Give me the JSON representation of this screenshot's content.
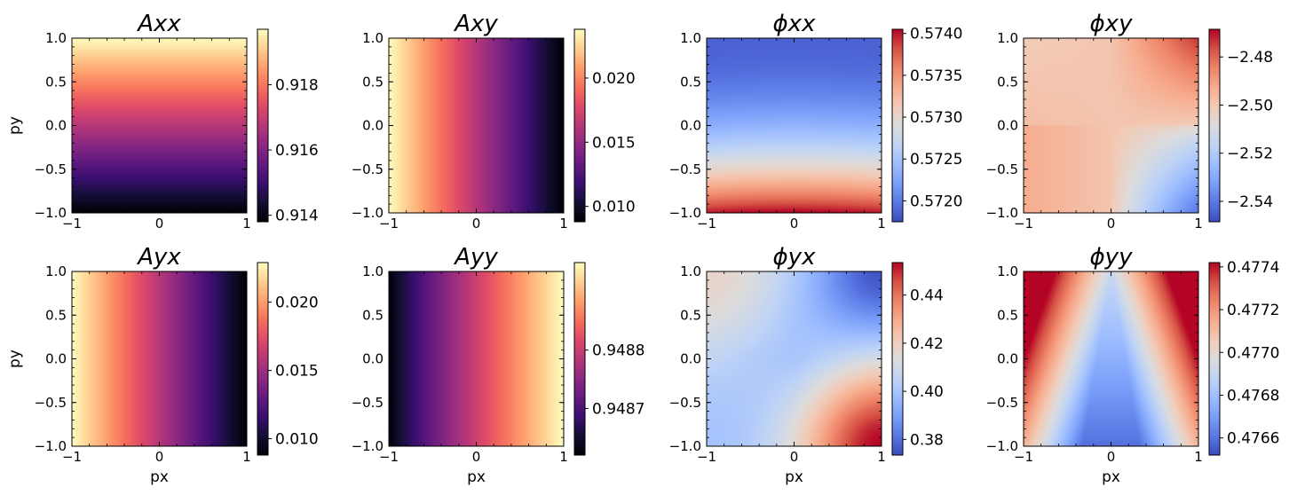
{
  "figure": {
    "colormaps": {
      "magma": [
        "#000004",
        "#140e36",
        "#3b0f70",
        "#641a80",
        "#8c2981",
        "#b73779",
        "#de4968",
        "#f7705c",
        "#fe9f6d",
        "#fecf92",
        "#fcfdbf"
      ],
      "coolwarm": [
        "#3b4cc0",
        "#5a78e4",
        "#7b9ff9",
        "#9ebeff",
        "#c0d4f5",
        "#dddcdc",
        "#f2cbb7",
        "#f7ac8e",
        "#ee8468",
        "#d65244",
        "#b40426"
      ]
    },
    "x_ticks": [
      -1,
      0,
      1
    ],
    "x_tick_labels": [
      "−1",
      "0",
      "1"
    ],
    "y_ticks": [
      1.0,
      0.5,
      0.0,
      -0.5,
      -1.0
    ],
    "y_tick_labels": [
      "1.0",
      "0.5",
      "0.0",
      "−0.5",
      "−1.0"
    ]
  },
  "chart_data": [
    {
      "type": "heatmap",
      "title": "Axx",
      "xlabel": "",
      "ylabel": "py",
      "xlim": [
        -1,
        1
      ],
      "ylim": [
        -1,
        1
      ],
      "colormap": "magma",
      "pattern": "vertical",
      "vmin": 0.9138,
      "vmax": 0.9197,
      "colorbar_ticks": [
        0.914,
        0.916,
        0.918
      ],
      "colorbar_tick_labels": [
        "0.914",
        "0.916",
        "0.918"
      ]
    },
    {
      "type": "heatmap",
      "title": "Axy",
      "xlabel": "",
      "ylabel": "",
      "xlim": [
        -1,
        1
      ],
      "ylim": [
        -1,
        1
      ],
      "colormap": "magma",
      "pattern": "horizontal-decreasing",
      "vmin": 0.0088,
      "vmax": 0.0238,
      "colorbar_ticks": [
        0.01,
        0.015,
        0.02
      ],
      "colorbar_tick_labels": [
        "0.010",
        "0.015",
        "0.020"
      ]
    },
    {
      "type": "heatmap",
      "title": "ϕxx",
      "xlabel": "",
      "ylabel": "",
      "xlim": [
        -1,
        1
      ],
      "ylim": [
        -1,
        1
      ],
      "colormap": "coolwarm",
      "pattern": "vertical-inverted",
      "vmin": 0.57175,
      "vmax": 0.57405,
      "colorbar_ticks": [
        0.572,
        0.5725,
        0.573,
        0.5735,
        0.574
      ],
      "colorbar_tick_labels": [
        "0.5720",
        "0.5725",
        "0.5730",
        "0.5735",
        "0.5740"
      ]
    },
    {
      "type": "heatmap",
      "title": "ϕxy",
      "xlabel": "",
      "ylabel": "",
      "xlim": [
        -1,
        1
      ],
      "ylim": [
        -1,
        1
      ],
      "colormap": "coolwarm",
      "pattern": "diagonal-xy",
      "vmin": -2.5485,
      "vmax": -2.4685,
      "colorbar_ticks": [
        -2.54,
        -2.52,
        -2.5,
        -2.48
      ],
      "colorbar_tick_labels": [
        "−2.54",
        "−2.52",
        "−2.50",
        "−2.48"
      ]
    },
    {
      "type": "heatmap",
      "title": "Ayx",
      "xlabel": "px",
      "ylabel": "py",
      "xlim": [
        -1,
        1
      ],
      "ylim": [
        -1,
        1
      ],
      "colormap": "magma",
      "pattern": "horizontal-decreasing",
      "vmin": 0.0088,
      "vmax": 0.0229,
      "colorbar_ticks": [
        0.01,
        0.015,
        0.02
      ],
      "colorbar_tick_labels": [
        "0.010",
        "0.015",
        "0.020"
      ]
    },
    {
      "type": "heatmap",
      "title": "Ayy",
      "xlabel": "px",
      "ylabel": "",
      "xlim": [
        -1,
        1
      ],
      "ylim": [
        -1,
        1
      ],
      "colormap": "magma",
      "pattern": "horizontal-increasing",
      "vmin": 0.94862,
      "vmax": 0.94895,
      "colorbar_ticks": [
        0.9487,
        0.9488
      ],
      "colorbar_tick_labels": [
        "0.9487",
        "0.9488"
      ]
    },
    {
      "type": "heatmap",
      "title": "ϕyx",
      "xlabel": "px",
      "ylabel": "",
      "xlim": [
        -1,
        1
      ],
      "ylim": [
        -1,
        1
      ],
      "colormap": "coolwarm",
      "pattern": "corner-yx",
      "vmin": 0.3735,
      "vmax": 0.4535,
      "colorbar_ticks": [
        0.38,
        0.4,
        0.42,
        0.44
      ],
      "colorbar_tick_labels": [
        "0.38",
        "0.40",
        "0.42",
        "0.44"
      ]
    },
    {
      "type": "heatmap",
      "title": "ϕyy",
      "xlabel": "px",
      "ylabel": "",
      "xlim": [
        -1,
        1
      ],
      "ylim": [
        -1,
        1
      ],
      "colormap": "coolwarm",
      "pattern": "v-shape",
      "vmin": 0.47652,
      "vmax": 0.47742,
      "colorbar_ticks": [
        0.4766,
        0.4768,
        0.477,
        0.4772,
        0.4774
      ],
      "colorbar_tick_labels": [
        "0.4766",
        "0.4768",
        "0.4770",
        "0.4772",
        "0.4774"
      ]
    }
  ]
}
